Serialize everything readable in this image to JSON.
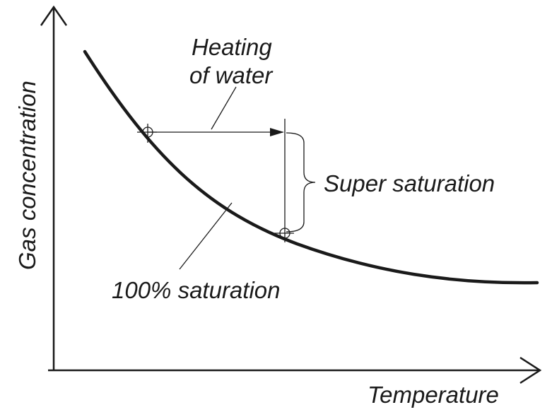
{
  "diagram": {
    "y_axis_label": "Gas concentration",
    "x_axis_label": "Temperature",
    "heating_label_line1": "Heating",
    "heating_label_line2": "of water",
    "super_saturation_label": "Super saturation",
    "saturation_curve_label": "100% saturation",
    "ink_color": "#1a1a1a"
  }
}
